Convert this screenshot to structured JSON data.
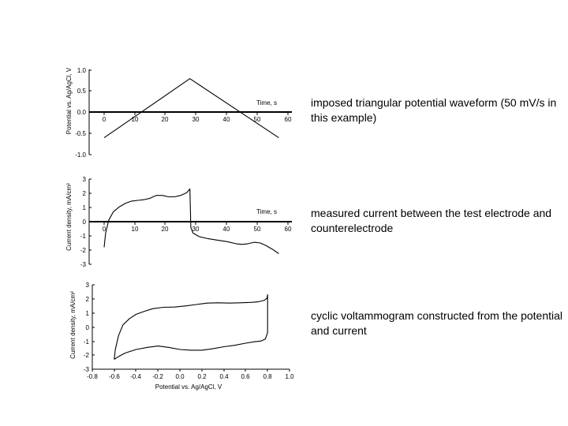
{
  "chart_data": [
    {
      "type": "line",
      "ylabel": "Potential vs. Ag/AgCl, V",
      "xlabel": "Time, s",
      "xlim": [
        -5,
        60
      ],
      "ylim": [
        -1.0,
        1.0
      ],
      "x_ticks": [
        "0",
        "10",
        "20",
        "30",
        "40",
        "50",
        "60"
      ],
      "y_ticks": [
        "1.0",
        "0.5",
        "0.0",
        "-0.5",
        "-1.0"
      ],
      "series": [
        {
          "x": [
            0,
            28,
            57
          ],
          "y": [
            -0.6,
            0.8,
            -0.6
          ]
        }
      ],
      "caption": "imposed triangular potential waveform (50 mV/s in this example)"
    },
    {
      "type": "line",
      "ylabel": "Current density, mA/cm²",
      "xlabel": "Time, s",
      "xlim": [
        -5,
        60
      ],
      "ylim": [
        -3,
        3
      ],
      "x_ticks": [
        "0",
        "10",
        "20",
        "30",
        "40",
        "50",
        "60"
      ],
      "y_ticks": [
        "3",
        "2",
        "1",
        "0",
        "-1",
        "-2",
        "-3"
      ],
      "series": [
        {
          "x": [
            0,
            0.5,
            1.5,
            3,
            5,
            7,
            9,
            11,
            13,
            15,
            17,
            19,
            21,
            23,
            25,
            27,
            28,
            28.3,
            29,
            31,
            34,
            37,
            40,
            43,
            45,
            47,
            49,
            51,
            53,
            55,
            57
          ],
          "y": [
            -1.8,
            -0.8,
            0.1,
            0.7,
            1.05,
            1.3,
            1.45,
            1.5,
            1.55,
            1.65,
            1.85,
            1.85,
            1.75,
            1.75,
            1.85,
            2.05,
            2.3,
            -0.4,
            -0.8,
            -1.05,
            -1.2,
            -1.3,
            -1.4,
            -1.55,
            -1.6,
            -1.55,
            -1.45,
            -1.5,
            -1.7,
            -1.95,
            -2.25
          ]
        }
      ],
      "caption": "measured current between the test electrode and counterelectrode"
    },
    {
      "type": "line",
      "ylabel": "Current density, mA/cm²",
      "xlabel": "Potential vs. Ag/AgCl, V",
      "xlim": [
        -0.8,
        1.0
      ],
      "ylim": [
        -3,
        3
      ],
      "x_ticks": [
        "-0.8",
        "-0.6",
        "-0.4",
        "-0.2",
        "0.0",
        "0.2",
        "0.4",
        "0.6",
        "0.8",
        "1.0"
      ],
      "y_ticks": [
        "3",
        "2",
        "1",
        "0",
        "-1",
        "-2",
        "-3"
      ],
      "series": [
        {
          "x": [
            -0.6,
            -0.59,
            -0.56,
            -0.52,
            -0.46,
            -0.4,
            -0.33,
            -0.25,
            -0.15,
            -0.05,
            0.05,
            0.15,
            0.25,
            0.35,
            0.45,
            0.55,
            0.65,
            0.72,
            0.77,
            0.795,
            0.8,
            0.8,
            0.78,
            0.74,
            0.68,
            0.6,
            0.5,
            0.4,
            0.3,
            0.2,
            0.1,
            0.0,
            -0.1,
            -0.2,
            -0.3,
            -0.4,
            -0.5,
            -0.56,
            -0.6
          ],
          "y": [
            -2.3,
            -1.6,
            -0.6,
            0.15,
            0.6,
            0.9,
            1.1,
            1.3,
            1.4,
            1.42,
            1.5,
            1.6,
            1.7,
            1.72,
            1.7,
            1.72,
            1.75,
            1.8,
            1.9,
            2.05,
            2.3,
            -0.4,
            -0.85,
            -1.0,
            -1.05,
            -1.15,
            -1.3,
            -1.4,
            -1.55,
            -1.65,
            -1.65,
            -1.6,
            -1.45,
            -1.35,
            -1.45,
            -1.6,
            -1.85,
            -2.1,
            -2.3
          ]
        }
      ],
      "caption": "cyclic voltammogram constructed from the potential and current"
    }
  ]
}
